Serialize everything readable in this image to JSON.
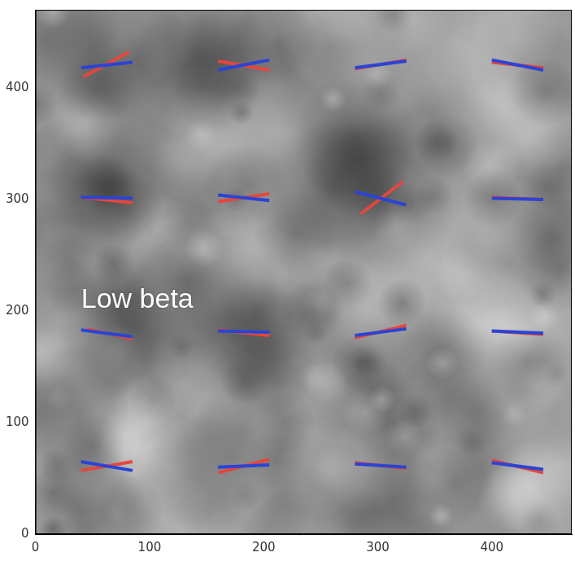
{
  "chart_data": {
    "type": "line",
    "xlim": [
      0,
      470
    ],
    "ylim": [
      0,
      470
    ],
    "xticks": [
      0,
      100,
      200,
      300,
      400
    ],
    "yticks": [
      0,
      100,
      200,
      300,
      400
    ],
    "grid": false,
    "series": [
      {
        "color": "#2b44d4",
        "x": [
          40,
          85,
          null,
          160,
          205,
          null,
          280,
          325,
          null,
          400,
          445,
          null,
          40,
          85,
          null,
          160,
          205,
          null,
          280,
          325,
          null,
          400,
          445,
          null,
          40,
          85,
          null,
          160,
          205,
          null,
          280,
          325,
          null,
          400,
          445,
          null,
          40,
          85,
          null,
          160,
          205,
          null,
          280,
          325,
          null,
          400,
          445
        ],
        "values": [
          418,
          423,
          null,
          416,
          425,
          null,
          418,
          424,
          null,
          425,
          416,
          null,
          302,
          301,
          null,
          304,
          299,
          null,
          307,
          295,
          null,
          301,
          300,
          null,
          183,
          177,
          null,
          182,
          181,
          null,
          178,
          184,
          null,
          182,
          180,
          null,
          65,
          57,
          null,
          60,
          62,
          null,
          63,
          60,
          null,
          64,
          58
        ]
      },
      {
        "color": "#e3473d",
        "x": [
          42,
          82,
          null,
          160,
          205,
          null,
          280,
          325,
          null,
          400,
          445,
          null,
          40,
          85,
          null,
          160,
          205,
          null,
          285,
          322,
          null,
          400,
          445,
          null,
          45,
          85,
          null,
          160,
          205,
          null,
          280,
          325,
          null,
          400,
          445,
          null,
          40,
          85,
          null,
          160,
          205,
          null,
          280,
          325,
          null,
          400,
          445
        ],
        "values": [
          410,
          432,
          null,
          424,
          416,
          null,
          417,
          425,
          null,
          423,
          418,
          null,
          302,
          297,
          null,
          298,
          305,
          null,
          287,
          316,
          null,
          302,
          300,
          null,
          184,
          175,
          null,
          183,
          178,
          null,
          176,
          187,
          null,
          182,
          179,
          null,
          57,
          65,
          null,
          55,
          67,
          null,
          64,
          59,
          null,
          66,
          55
        ]
      }
    ],
    "annotations": [
      {
        "text": "Low beta",
        "x": 40,
        "y": 210
      }
    ]
  }
}
